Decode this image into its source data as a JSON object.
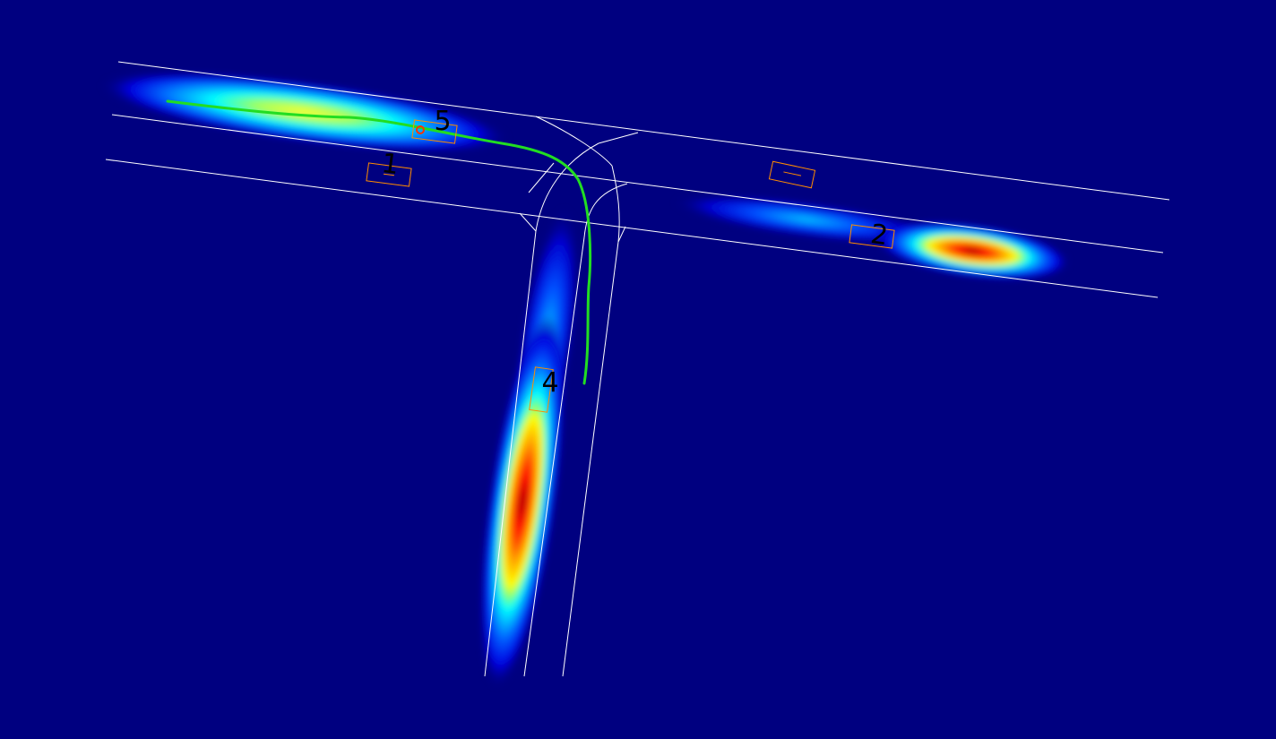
{
  "scene": {
    "background_color": "#000080",
    "lane_line_color": "#ffffff",
    "vehicle_box_color": "#ff8c00",
    "trajectory_color": "#22dd22",
    "ego_marker_color": "#ff3300",
    "label_color": "#000000"
  },
  "vehicles": [
    {
      "id": "vehicle-1",
      "label": "1"
    },
    {
      "id": "vehicle-2",
      "label": "2"
    },
    {
      "id": "vehicle-3",
      "label": ""
    },
    {
      "id": "vehicle-4",
      "label": "4"
    },
    {
      "id": "vehicle-5",
      "label": "5"
    }
  ],
  "heatmap_colormap": [
    "#000080",
    "#0000ff",
    "#00ffff",
    "#ffff00",
    "#ff0000",
    "#800000"
  ]
}
